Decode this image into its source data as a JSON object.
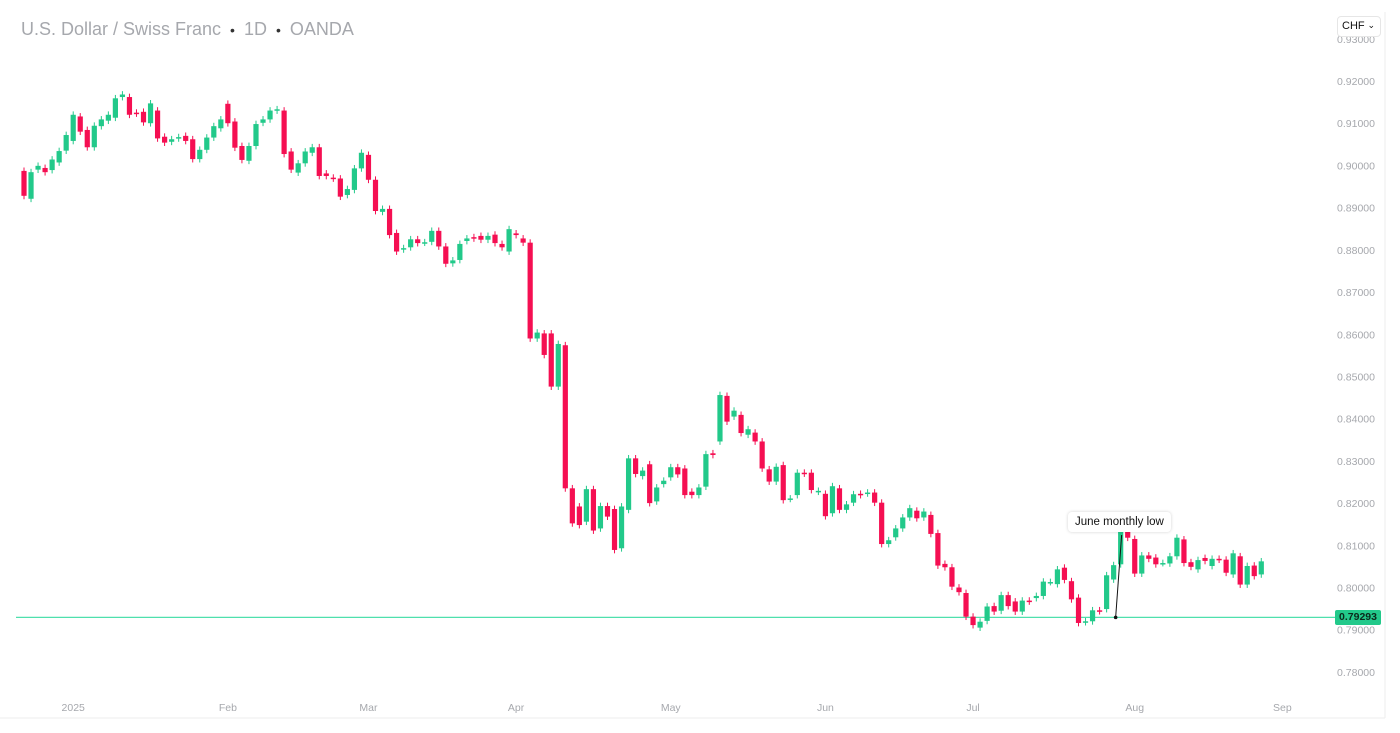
{
  "header": {
    "symbol": "U.S. Dollar / Swiss Franc",
    "interval": "1D",
    "source": "OANDA",
    "separator": "•"
  },
  "currency_selector": {
    "value": "CHF"
  },
  "colors": {
    "up": "#22c98a",
    "down": "#f50f52",
    "price_line": "#4fe0ad"
  },
  "annotation": {
    "text": "June monthly low"
  },
  "last_price_label": "0.79293",
  "chart_data": {
    "type": "candlestick",
    "title": "U.S. Dollar / Swiss Franc · 1D · OANDA",
    "ylim": [
      0.7755,
      0.9325
    ],
    "y_ticks": [
      "0.93000",
      "0.92000",
      "0.91000",
      "0.90000",
      "0.89000",
      "0.88000",
      "0.87000",
      "0.86000",
      "0.85000",
      "0.84000",
      "0.83000",
      "0.82000",
      "0.81000",
      "0.80000",
      "0.79000",
      "0.78000"
    ],
    "x_ticks": [
      {
        "label": "2025",
        "index": 7
      },
      {
        "label": "Feb",
        "index": 29
      },
      {
        "label": "Mar",
        "index": 49
      },
      {
        "label": "Apr",
        "index": 70
      },
      {
        "label": "May",
        "index": 92
      },
      {
        "label": "Jun",
        "index": 114
      },
      {
        "label": "Jul",
        "index": 135
      },
      {
        "label": "Aug",
        "index": 158
      },
      {
        "label": "Sep",
        "index": 179
      }
    ],
    "horizontal_line": 0.79293,
    "annotation_point": {
      "index": 155,
      "price": 0.79293
    },
    "ohlc_note": "pairs are [open, close]",
    "candles": [
      [
        0.8987,
        0.8928
      ],
      [
        0.8921,
        0.8984
      ],
      [
        0.899,
        0.8999
      ],
      [
        0.8994,
        0.8984
      ],
      [
        0.8989,
        0.9014
      ],
      [
        0.9007,
        0.9034
      ],
      [
        0.9035,
        0.9072
      ],
      [
        0.9058,
        0.912
      ],
      [
        0.9116,
        0.908
      ],
      [
        0.9084,
        0.9043
      ],
      [
        0.9043,
        0.9094
      ],
      [
        0.9093,
        0.9109
      ],
      [
        0.9106,
        0.912
      ],
      [
        0.9113,
        0.9159
      ],
      [
        0.9162,
        0.9168
      ],
      [
        0.9162,
        0.912
      ],
      [
        0.9125,
        0.9123
      ],
      [
        0.9127,
        0.9102
      ],
      [
        0.91,
        0.9147
      ],
      [
        0.913,
        0.9064
      ],
      [
        0.9068,
        0.9054
      ],
      [
        0.9056,
        0.9062
      ],
      [
        0.9064,
        0.9067
      ],
      [
        0.907,
        0.9058
      ],
      [
        0.9062,
        0.9015
      ],
      [
        0.9015,
        0.9037
      ],
      [
        0.9037,
        0.9066
      ],
      [
        0.9066,
        0.9093
      ],
      [
        0.9088,
        0.9109
      ],
      [
        0.9146,
        0.91
      ],
      [
        0.9104,
        0.9042
      ],
      [
        0.9046,
        0.9013
      ],
      [
        0.9011,
        0.9046
      ],
      [
        0.9046,
        0.9098
      ],
      [
        0.9101,
        0.9109
      ],
      [
        0.9109,
        0.913
      ],
      [
        0.913,
        0.9133
      ],
      [
        0.913,
        0.9027
      ],
      [
        0.9033,
        0.899
      ],
      [
        0.8983,
        0.9005
      ],
      [
        0.9005,
        0.9033
      ],
      [
        0.903,
        0.9043
      ],
      [
        0.9043,
        0.8975
      ],
      [
        0.8981,
        0.8975
      ],
      [
        0.8971,
        0.8969
      ],
      [
        0.8969,
        0.8926
      ],
      [
        0.893,
        0.8944
      ],
      [
        0.8942,
        0.8993
      ],
      [
        0.8993,
        0.903
      ],
      [
        0.9025,
        0.8966
      ],
      [
        0.8966,
        0.8892
      ],
      [
        0.889,
        0.8897
      ],
      [
        0.8897,
        0.8835
      ],
      [
        0.884,
        0.8796
      ],
      [
        0.8801,
        0.8804
      ],
      [
        0.8806,
        0.8825
      ],
      [
        0.8825,
        0.8816
      ],
      [
        0.8817,
        0.8818
      ],
      [
        0.8819,
        0.8845
      ],
      [
        0.8845,
        0.8808
      ],
      [
        0.8808,
        0.8767
      ],
      [
        0.8768,
        0.8775
      ],
      [
        0.8776,
        0.8814
      ],
      [
        0.8821,
        0.8827
      ],
      [
        0.883,
        0.8827
      ],
      [
        0.8833,
        0.8824
      ],
      [
        0.8824,
        0.8833
      ],
      [
        0.8836,
        0.8816
      ],
      [
        0.8814,
        0.8806
      ],
      [
        0.8796,
        0.8849
      ],
      [
        0.8839,
        0.8835
      ],
      [
        0.8827,
        0.8817
      ],
      [
        0.8817,
        0.859
      ],
      [
        0.859,
        0.8604
      ],
      [
        0.8602,
        0.8551
      ],
      [
        0.8602,
        0.8476
      ],
      [
        0.8476,
        0.8577
      ],
      [
        0.8574,
        0.8235
      ],
      [
        0.8235,
        0.8152
      ],
      [
        0.8192,
        0.8148
      ],
      [
        0.8156,
        0.8233
      ],
      [
        0.8233,
        0.8135
      ],
      [
        0.814,
        0.8193
      ],
      [
        0.8193,
        0.8168
      ],
      [
        0.8186,
        0.8089
      ],
      [
        0.8093,
        0.8192
      ],
      [
        0.8184,
        0.8306
      ],
      [
        0.8306,
        0.8269
      ],
      [
        0.8264,
        0.8277
      ],
      [
        0.8292,
        0.82
      ],
      [
        0.8204,
        0.8237
      ],
      [
        0.8245,
        0.8253
      ],
      [
        0.8261,
        0.8285
      ],
      [
        0.8285,
        0.8268
      ],
      [
        0.8282,
        0.8219
      ],
      [
        0.8227,
        0.8219
      ],
      [
        0.8219,
        0.8237
      ],
      [
        0.8239,
        0.8316
      ],
      [
        0.8318,
        0.8314
      ],
      [
        0.8346,
        0.8456
      ],
      [
        0.8454,
        0.8393
      ],
      [
        0.8405,
        0.8419
      ],
      [
        0.8409,
        0.8366
      ],
      [
        0.8362,
        0.8375
      ],
      [
        0.8367,
        0.8346
      ],
      [
        0.8346,
        0.8282
      ],
      [
        0.828,
        0.8251
      ],
      [
        0.8251,
        0.8286
      ],
      [
        0.829,
        0.8207
      ],
      [
        0.821,
        0.8211
      ],
      [
        0.8219,
        0.8272
      ],
      [
        0.8272,
        0.827
      ],
      [
        0.8272,
        0.8231
      ],
      [
        0.8227,
        0.8229
      ],
      [
        0.8222,
        0.8169
      ],
      [
        0.8176,
        0.824
      ],
      [
        0.8235,
        0.8184
      ],
      [
        0.8184,
        0.8197
      ],
      [
        0.8201,
        0.8221
      ],
      [
        0.8222,
        0.8219
      ],
      [
        0.8223,
        0.8225
      ],
      [
        0.8225,
        0.8201
      ],
      [
        0.8201,
        0.8103
      ],
      [
        0.8103,
        0.8112
      ],
      [
        0.8119,
        0.814
      ],
      [
        0.814,
        0.8166
      ],
      [
        0.8166,
        0.8188
      ],
      [
        0.8182,
        0.8164
      ],
      [
        0.8166,
        0.818
      ],
      [
        0.8172,
        0.8127
      ],
      [
        0.8129,
        0.8052
      ],
      [
        0.8056,
        0.8048
      ],
      [
        0.8048,
        0.8002
      ],
      [
        0.8,
        0.7989
      ],
      [
        0.7987,
        0.7931
      ],
      [
        0.7931,
        0.7911
      ],
      [
        0.7905,
        0.7919
      ],
      [
        0.7921,
        0.7955
      ],
      [
        0.7956,
        0.7943
      ],
      [
        0.7945,
        0.7982
      ],
      [
        0.7982,
        0.7956
      ],
      [
        0.7967,
        0.7943
      ],
      [
        0.7943,
        0.7969
      ],
      [
        0.7969,
        0.7967
      ],
      [
        0.7975,
        0.798
      ],
      [
        0.798,
        0.8014
      ],
      [
        0.8013,
        0.8013
      ],
      [
        0.8008,
        0.8043
      ],
      [
        0.8047,
        0.8018
      ],
      [
        0.8015,
        0.7972
      ],
      [
        0.7976,
        0.7916
      ],
      [
        0.7918,
        0.792
      ],
      [
        0.792,
        0.7946
      ],
      [
        0.7946,
        0.7944
      ],
      [
        0.7949,
        0.8029
      ],
      [
        0.8019,
        0.8053
      ],
      [
        0.8055,
        0.8141
      ],
      [
        0.8141,
        0.8118
      ],
      [
        0.8115,
        0.8033
      ],
      [
        0.8033,
        0.8076
      ],
      [
        0.8076,
        0.8068
      ],
      [
        0.8071,
        0.8055
      ],
      [
        0.8058,
        0.8058
      ],
      [
        0.8057,
        0.8074
      ],
      [
        0.8074,
        0.8118
      ],
      [
        0.8114,
        0.8058
      ],
      [
        0.806,
        0.8049
      ],
      [
        0.8043,
        0.8065
      ],
      [
        0.807,
        0.8063
      ],
      [
        0.8051,
        0.8068
      ],
      [
        0.8068,
        0.8066
      ],
      [
        0.8066,
        0.8035
      ],
      [
        0.8031,
        0.8081
      ],
      [
        0.8074,
        0.8007
      ],
      [
        0.8007,
        0.8051
      ],
      [
        0.8052,
        0.8027
      ],
      [
        0.8031,
        0.8062
      ]
    ]
  }
}
